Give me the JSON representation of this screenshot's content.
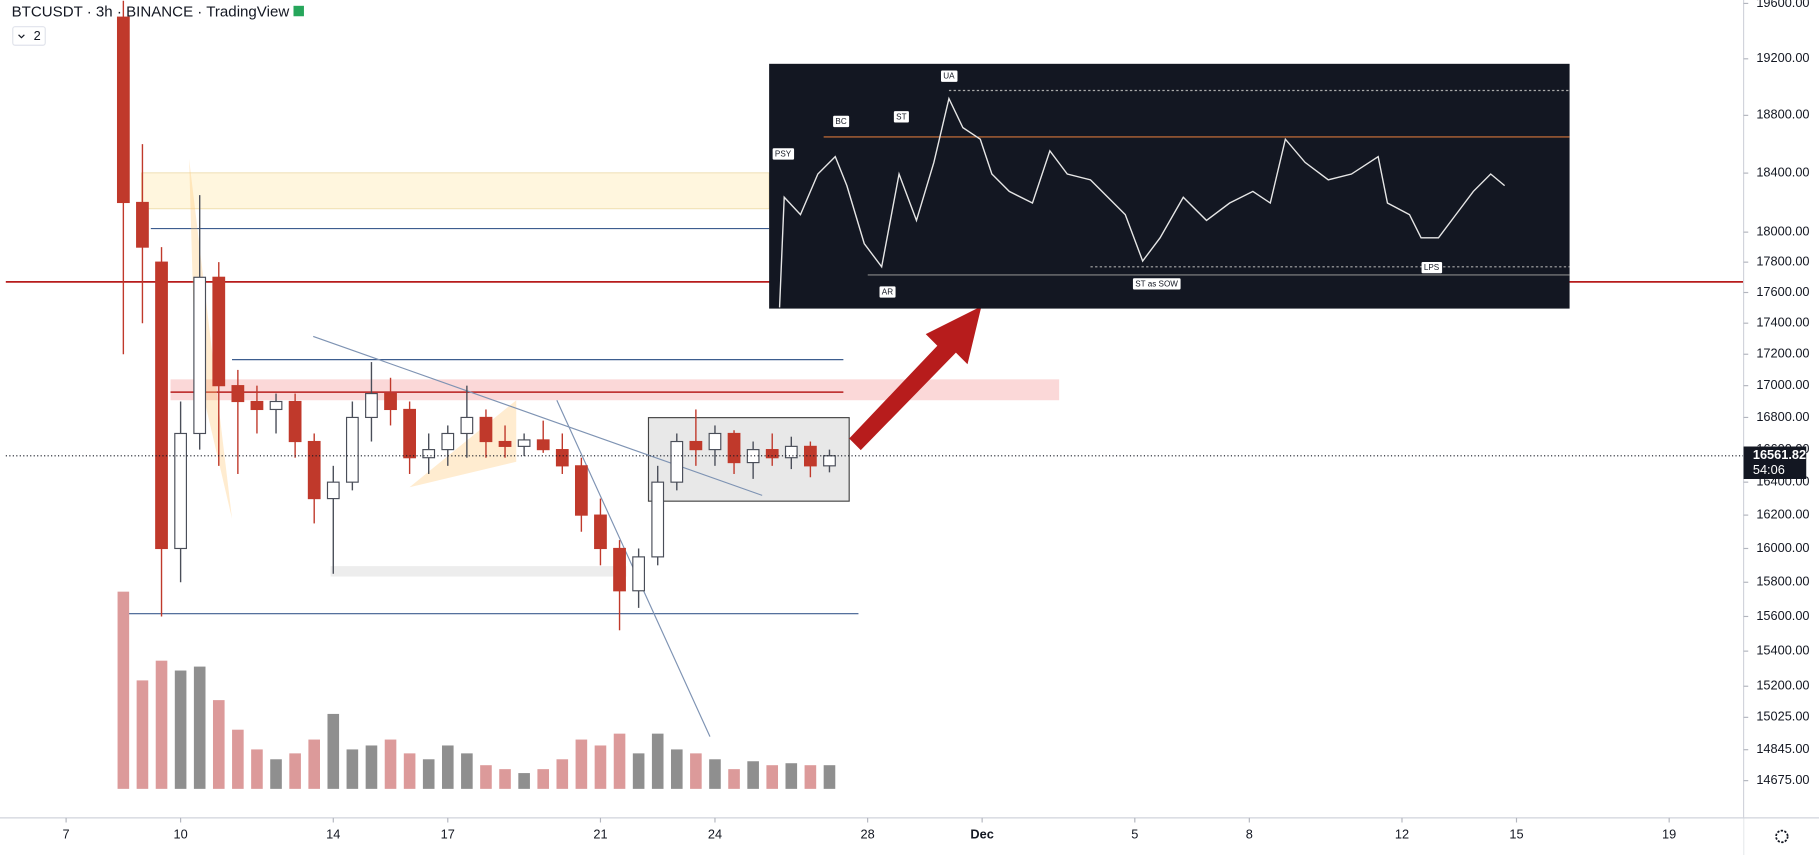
{
  "chart_data": {
    "type": "candlestick",
    "title": "BTCUSDT · 3h · BINANCE · TradingView",
    "indicator_count": 2,
    "log_scale": true,
    "grid": false,
    "up_color": "#4a4e59",
    "down_color": "#c0392b",
    "volume_up_color": "#8f8f8f",
    "volume_down_color": "#dc9a9a",
    "xlim": [
      5.42,
      50.95
    ],
    "xticks": [
      7,
      10,
      14,
      17,
      21,
      24,
      28,
      {
        "value": 31,
        "label": "Dec"
      },
      {
        "value": 35,
        "label": "5"
      },
      {
        "value": 38,
        "label": "8"
      },
      {
        "value": 42,
        "label": "12"
      },
      {
        "value": 45,
        "label": "15"
      },
      {
        "value": 49,
        "label": "19"
      }
    ],
    "ylim": [
      14473,
      19625
    ],
    "yticks": [
      {
        "value": 19600,
        "label": "19600.00"
      },
      {
        "value": 19200,
        "label": "19200.00"
      },
      {
        "value": 18800,
        "label": "18800.00"
      },
      {
        "value": 18400,
        "label": "18400.00"
      },
      {
        "value": 18000,
        "label": "18000.00"
      },
      {
        "value": 17800,
        "label": "17800.00"
      },
      {
        "value": 17600,
        "label": "17600.00"
      },
      {
        "value": 17400,
        "label": "17400.00"
      },
      {
        "value": 17200,
        "label": "17200.00"
      },
      {
        "value": 17000,
        "label": "17000.00"
      },
      {
        "value": 16800,
        "label": "16800.00"
      },
      {
        "value": 16600,
        "label": "16600.00"
      },
      {
        "value": 16400,
        "label": "16400.00"
      },
      {
        "value": 16200,
        "label": "16200.00"
      },
      {
        "value": 16000,
        "label": "16000.00"
      },
      {
        "value": 15800,
        "label": "15800.00"
      },
      {
        "value": 15600,
        "label": "15600.00"
      },
      {
        "value": 15400,
        "label": "15400.00"
      },
      {
        "value": 15200,
        "label": "15200.00"
      },
      {
        "value": 15025,
        "label": "15025.00"
      },
      {
        "value": 14845,
        "label": "14845.00"
      },
      {
        "value": 14675,
        "label": "14675.00"
      }
    ],
    "x": [
      8.5,
      9,
      9.5,
      10,
      10.5,
      11,
      11.5,
      12,
      12.5,
      13,
      13.5,
      14,
      14.5,
      15,
      15.5,
      16,
      16.5,
      17,
      17.5,
      18,
      18.5,
      19,
      19.5,
      20,
      20.5,
      21,
      21.5,
      22,
      22.5,
      23,
      23.5,
      24,
      24.5,
      25,
      25.5,
      26,
      26.5,
      27
    ],
    "open": [
      19500,
      18200,
      17800,
      16000,
      16700,
      17700,
      17000,
      16900,
      16850,
      16900,
      16650,
      16300,
      16400,
      16800,
      16950,
      16850,
      16550,
      16600,
      16700,
      16800,
      16650,
      16620,
      16660,
      16600,
      16500,
      16200,
      16000,
      15750,
      15950,
      16400,
      16650,
      16600,
      16700,
      16520,
      16600,
      16550,
      16620,
      16500
    ],
    "high": [
      19620,
      18600,
      17900,
      16900,
      18250,
      17800,
      17100,
      17000,
      16950,
      16950,
      16700,
      16500,
      16900,
      17150,
      17050,
      16900,
      16700,
      16750,
      17000,
      16850,
      16750,
      16700,
      16780,
      16700,
      16550,
      16300,
      16050,
      16000,
      16500,
      16700,
      16850,
      16750,
      16720,
      16650,
      16700,
      16680,
      16650,
      16600
    ],
    "low": [
      17200,
      17400,
      15600,
      15800,
      16600,
      16500,
      16450,
      16700,
      16700,
      16550,
      16150,
      15850,
      16350,
      16650,
      16750,
      16450,
      16450,
      16500,
      16550,
      16550,
      16550,
      16560,
      16580,
      16450,
      16100,
      15900,
      15520,
      15650,
      15900,
      16350,
      16500,
      16500,
      16450,
      16420,
      16500,
      16480,
      16430,
      16460
    ],
    "close": [
      18200,
      17900,
      16000,
      16700,
      17700,
      17000,
      16900,
      16850,
      16900,
      16650,
      16300,
      16400,
      16800,
      16950,
      16850,
      16550,
      16600,
      16700,
      16800,
      16650,
      16620,
      16660,
      16600,
      16500,
      16200,
      16000,
      15750,
      15950,
      16400,
      16650,
      16600,
      16700,
      16520,
      16600,
      16550,
      16620,
      16500,
      16561.82
    ],
    "volume": [
      100,
      55,
      65,
      60,
      62,
      45,
      30,
      20,
      15,
      18,
      25,
      38,
      20,
      22,
      25,
      18,
      15,
      22,
      18,
      12,
      10,
      8,
      10,
      15,
      25,
      22,
      28,
      18,
      28,
      20,
      18,
      15,
      10,
      14,
      12,
      13,
      12,
      12
    ],
    "vlim": [
      0,
      100
    ],
    "last_price": 16561.82,
    "countdown": "54:06",
    "annotations": [
      "PSY",
      "BC",
      "ST",
      "UA",
      "AR",
      "ST as SOW",
      "LPS"
    ]
  }
}
